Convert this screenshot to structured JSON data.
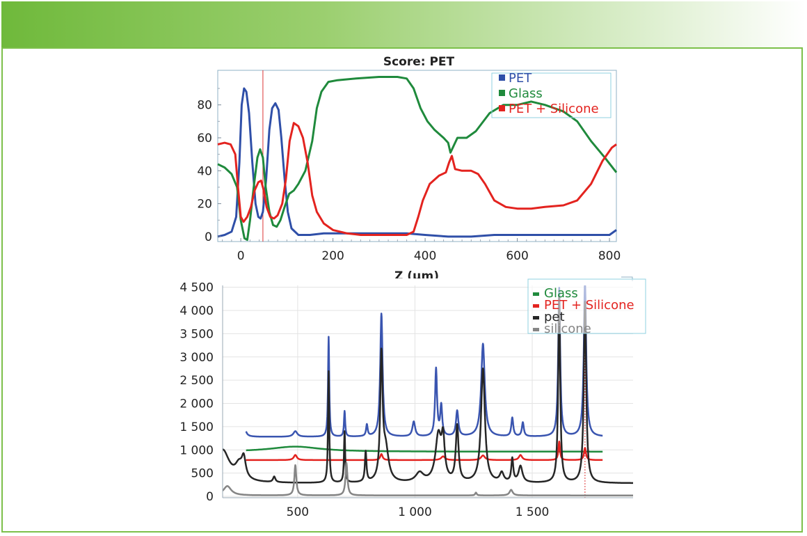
{
  "chart_data": [
    {
      "type": "line",
      "title": "Score: PET",
      "xlabel": "Z (µm)",
      "ylabel": "",
      "xlim": [
        -50,
        815
      ],
      "ylim": [
        -3,
        101
      ],
      "x_ticks": [
        {
          "v": 0,
          "label": "0"
        },
        {
          "v": 200,
          "label": "200"
        },
        {
          "v": 400,
          "label": "400"
        },
        {
          "v": 600,
          "label": "600"
        },
        {
          "v": 800,
          "label": "800"
        }
      ],
      "y_ticks": [
        {
          "v": 0,
          "label": "0"
        },
        {
          "v": 20,
          "label": "20"
        },
        {
          "v": 40,
          "label": "40"
        },
        {
          "v": 60,
          "label": "60"
        },
        {
          "v": 80,
          "label": "80"
        }
      ],
      "marker_line_x": 48,
      "legend_position": "top-right",
      "series": [
        {
          "name": "PET",
          "color": "#2f4fa8",
          "points": [
            [
              -50,
              0
            ],
            [
              -35,
              1
            ],
            [
              -20,
              3
            ],
            [
              -10,
              12
            ],
            [
              -3,
              45
            ],
            [
              2,
              80
            ],
            [
              7,
              90
            ],
            [
              12,
              88
            ],
            [
              18,
              75
            ],
            [
              25,
              45
            ],
            [
              32,
              20
            ],
            [
              38,
              12
            ],
            [
              43,
              11
            ],
            [
              48,
              15
            ],
            [
              55,
              35
            ],
            [
              62,
              65
            ],
            [
              68,
              78
            ],
            [
              75,
              81
            ],
            [
              82,
              77
            ],
            [
              88,
              60
            ],
            [
              95,
              35
            ],
            [
              102,
              15
            ],
            [
              110,
              5
            ],
            [
              125,
              1
            ],
            [
              150,
              1
            ],
            [
              180,
              2
            ],
            [
              250,
              2
            ],
            [
              320,
              2
            ],
            [
              360,
              2
            ],
            [
              400,
              1
            ],
            [
              450,
              0
            ],
            [
              500,
              0
            ],
            [
              550,
              1
            ],
            [
              600,
              1
            ],
            [
              650,
              1
            ],
            [
              700,
              1
            ],
            [
              750,
              1
            ],
            [
              800,
              1
            ],
            [
              815,
              4
            ]
          ]
        },
        {
          "name": "Glass",
          "color": "#1f8a3c",
          "points": [
            [
              -50,
              44
            ],
            [
              -35,
              42
            ],
            [
              -20,
              38
            ],
            [
              -8,
              30
            ],
            [
              0,
              10
            ],
            [
              8,
              -1
            ],
            [
              14,
              -2
            ],
            [
              20,
              10
            ],
            [
              28,
              30
            ],
            [
              36,
              48
            ],
            [
              42,
              53
            ],
            [
              48,
              48
            ],
            [
              54,
              30
            ],
            [
              62,
              15
            ],
            [
              70,
              7
            ],
            [
              78,
              6
            ],
            [
              86,
              10
            ],
            [
              95,
              18
            ],
            [
              105,
              26
            ],
            [
              115,
              28
            ],
            [
              125,
              32
            ],
            [
              140,
              40
            ],
            [
              155,
              58
            ],
            [
              165,
              78
            ],
            [
              175,
              88
            ],
            [
              190,
              94
            ],
            [
              210,
              95
            ],
            [
              250,
              96
            ],
            [
              300,
              97
            ],
            [
              340,
              97
            ],
            [
              360,
              96
            ],
            [
              375,
              90
            ],
            [
              390,
              78
            ],
            [
              405,
              70
            ],
            [
              420,
              65
            ],
            [
              440,
              60
            ],
            [
              450,
              57
            ],
            [
              455,
              51
            ],
            [
              460,
              54
            ],
            [
              470,
              60
            ],
            [
              490,
              60
            ],
            [
              510,
              64
            ],
            [
              540,
              75
            ],
            [
              570,
              80
            ],
            [
              600,
              80
            ],
            [
              630,
              82
            ],
            [
              660,
              80
            ],
            [
              700,
              76
            ],
            [
              730,
              70
            ],
            [
              760,
              58
            ],
            [
              790,
              48
            ],
            [
              815,
              39
            ]
          ]
        },
        {
          "name": "PET + Silicone",
          "color": "#e3231f",
          "points": [
            [
              -50,
              56
            ],
            [
              -35,
              57
            ],
            [
              -22,
              56
            ],
            [
              -12,
              50
            ],
            [
              -6,
              30
            ],
            [
              0,
              12
            ],
            [
              6,
              9
            ],
            [
              14,
              12
            ],
            [
              22,
              18
            ],
            [
              30,
              28
            ],
            [
              38,
              33
            ],
            [
              44,
              34
            ],
            [
              50,
              28
            ],
            [
              56,
              18
            ],
            [
              64,
              12
            ],
            [
              72,
              11
            ],
            [
              80,
              13
            ],
            [
              90,
              20
            ],
            [
              98,
              35
            ],
            [
              106,
              58
            ],
            [
              115,
              69
            ],
            [
              125,
              67
            ],
            [
              135,
              60
            ],
            [
              145,
              45
            ],
            [
              155,
              25
            ],
            [
              165,
              15
            ],
            [
              180,
              8
            ],
            [
              200,
              4
            ],
            [
              230,
              2
            ],
            [
              260,
              1
            ],
            [
              300,
              1
            ],
            [
              340,
              1
            ],
            [
              360,
              1
            ],
            [
              375,
              3
            ],
            [
              385,
              12
            ],
            [
              395,
              22
            ],
            [
              410,
              32
            ],
            [
              430,
              37
            ],
            [
              445,
              39
            ],
            [
              452,
              45
            ],
            [
              458,
              49
            ],
            [
              465,
              41
            ],
            [
              480,
              40
            ],
            [
              500,
              40
            ],
            [
              515,
              38
            ],
            [
              530,
              32
            ],
            [
              550,
              22
            ],
            [
              575,
              18
            ],
            [
              600,
              17
            ],
            [
              630,
              17
            ],
            [
              660,
              18
            ],
            [
              700,
              19
            ],
            [
              730,
              22
            ],
            [
              760,
              32
            ],
            [
              785,
              46
            ],
            [
              805,
              54
            ],
            [
              815,
              56
            ]
          ]
        }
      ]
    },
    {
      "type": "line",
      "title": "",
      "xlabel": "",
      "ylabel": "",
      "xlim": [
        180,
        1930
      ],
      "ylim": [
        -30,
        4540
      ],
      "x_ticks": [
        {
          "v": 500,
          "label": "500"
        },
        {
          "v": 1000,
          "label": "1 000"
        },
        {
          "v": 1500,
          "label": "1 500"
        }
      ],
      "y_ticks": [
        {
          "v": 0,
          "label": "0"
        },
        {
          "v": 500,
          "label": "500"
        },
        {
          "v": 1000,
          "label": "1 000"
        },
        {
          "v": 1500,
          "label": "1 500"
        },
        {
          "v": 2000,
          "label": "2 000"
        },
        {
          "v": 2500,
          "label": "2 500"
        },
        {
          "v": 3000,
          "label": "3 000"
        },
        {
          "v": 3500,
          "label": "3 500"
        },
        {
          "v": 4000,
          "label": "4 000"
        },
        {
          "v": 4500,
          "label": "4 500"
        }
      ],
      "marker_line_x": 1725,
      "legend_position": "top-right",
      "series": [
        {
          "name": "",
          "color": "#3a55b0",
          "in_legend": false,
          "from": 280,
          "to": 1800,
          "baseline": 1280,
          "peaks": [
            [
              270,
              300,
              8
            ],
            [
              490,
              120,
              10
            ],
            [
              632,
              2150,
              3
            ],
            [
              700,
              550,
              3
            ],
            [
              795,
              250,
              4
            ],
            [
              857,
              2650,
              6
            ],
            [
              995,
              320,
              7
            ],
            [
              1090,
              1450,
              5
            ],
            [
              1112,
              650,
              5
            ],
            [
              1180,
              550,
              6
            ],
            [
              1290,
              2000,
              9
            ],
            [
              1415,
              400,
              5
            ],
            [
              1460,
              300,
              5
            ],
            [
              1615,
              3200,
              5
            ],
            [
              1725,
              3300,
              6
            ]
          ]
        },
        {
          "name": "Glass",
          "color": "#1f8a3c",
          "from": 280,
          "to": 1800,
          "baseline": 960,
          "peaks": [
            [
              490,
              110,
              130
            ]
          ]
        },
        {
          "name": "PET + Silicone",
          "color": "#e3231f",
          "from": 280,
          "to": 1800,
          "baseline": 780,
          "peaks": [
            [
              490,
              110,
              8
            ],
            [
              857,
              130,
              6
            ],
            [
              1120,
              80,
              10
            ],
            [
              1290,
              100,
              10
            ],
            [
              1450,
              110,
              8
            ],
            [
              1615,
              400,
              4
            ],
            [
              1725,
              260,
              5
            ]
          ]
        },
        {
          "name": "pet",
          "color": "#262626",
          "from": 180,
          "to": 1930,
          "baseline": 280,
          "peaks": [
            [
              180,
              700,
              35
            ],
            [
              250,
              300,
              20
            ],
            [
              270,
              400,
              10
            ],
            [
              400,
              120,
              6
            ],
            [
              632,
              2400,
              3
            ],
            [
              700,
              1100,
              3
            ],
            [
              790,
              650,
              4
            ],
            [
              857,
              2600,
              6
            ],
            [
              875,
              700,
              15
            ],
            [
              1020,
              200,
              20
            ],
            [
              1100,
              1000,
              15
            ],
            [
              1120,
              800,
              8
            ],
            [
              1180,
              1200,
              7
            ],
            [
              1290,
              2450,
              10
            ],
            [
              1370,
              200,
              10
            ],
            [
              1415,
              500,
              5
            ],
            [
              1450,
              350,
              10
            ],
            [
              1615,
              4000,
              5
            ],
            [
              1725,
              3900,
              6
            ]
          ]
        },
        {
          "name": "silicone",
          "color": "#858585",
          "from": 180,
          "to": 1930,
          "baseline": 20,
          "peaks": [
            [
              200,
              200,
              20
            ],
            [
              490,
              650,
              5
            ],
            [
              708,
              700,
              5
            ],
            [
              1260,
              60,
              4
            ],
            [
              1410,
              120,
              8
            ]
          ]
        }
      ]
    }
  ]
}
